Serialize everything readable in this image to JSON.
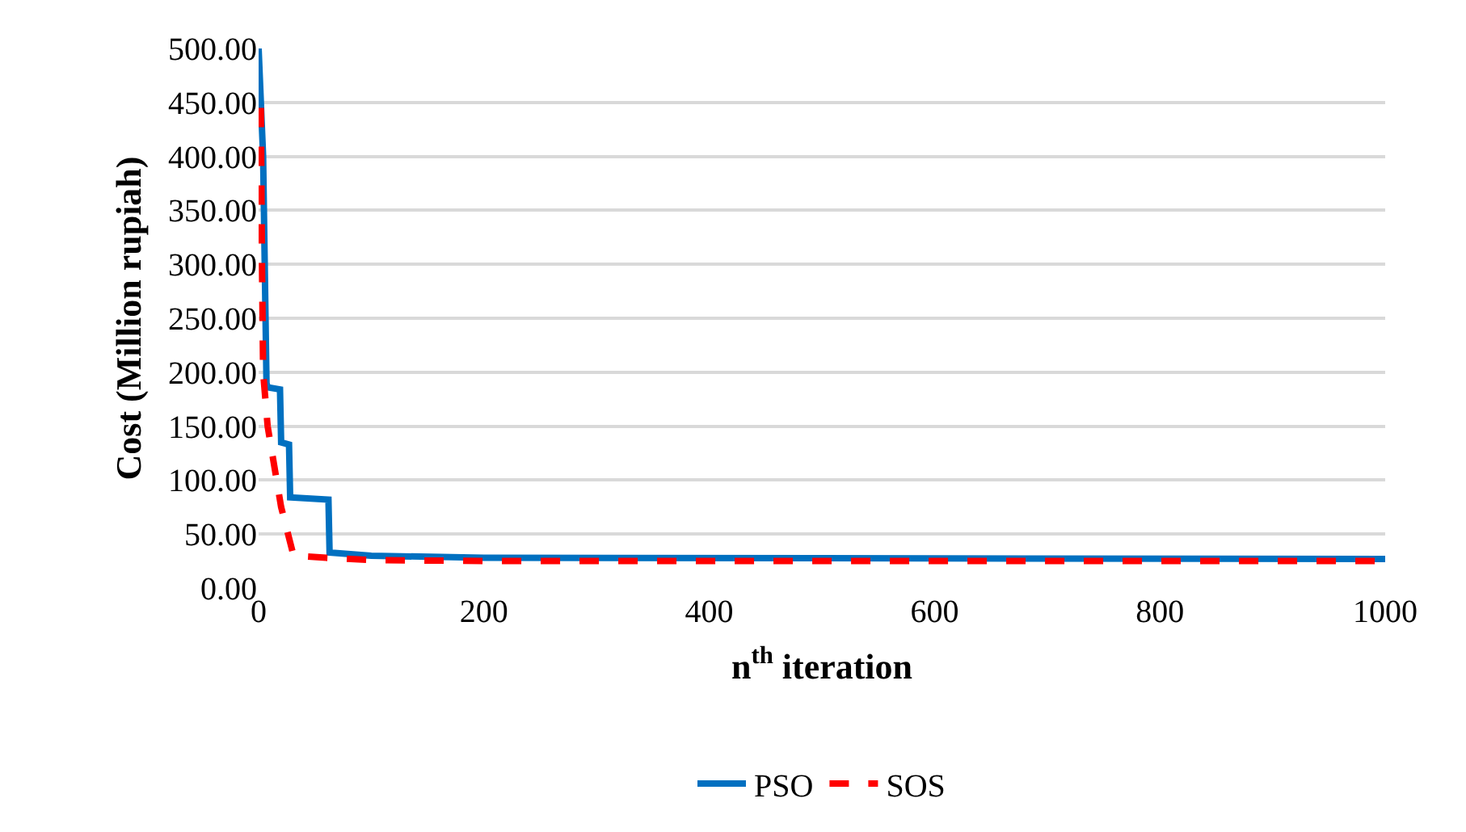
{
  "chart_data": {
    "type": "line",
    "xlabel": "n$^{th}$ iteration",
    "ylabel": "Cost (Million rupiah)",
    "xlim": [
      0,
      1000
    ],
    "xticks": [
      0,
      200,
      400,
      600,
      800,
      1000
    ],
    "ylim": [
      0,
      500
    ],
    "yticks": [
      {
        "value": 0,
        "label": "0.00"
      },
      {
        "value": 50,
        "label": "50.00"
      },
      {
        "value": 100,
        "label": "100.00"
      },
      {
        "value": 150,
        "label": "150.00"
      },
      {
        "value": 200,
        "label": "200.00"
      },
      {
        "value": 250,
        "label": "250.00"
      },
      {
        "value": 300,
        "label": "300.00"
      },
      {
        "value": 350,
        "label": "350.00"
      },
      {
        "value": 400,
        "label": "400.00"
      },
      {
        "value": 450,
        "label": "450.00"
      },
      {
        "value": 500,
        "label": "500.00"
      }
    ],
    "grid": "y",
    "legend": "bottom",
    "marker": "none",
    "series": [
      {
        "name": "PSO",
        "color": "#0070c0",
        "line_style": "solid",
        "x": [
          0,
          4,
          7,
          8,
          19,
          20,
          27,
          28,
          62,
          63,
          100,
          200,
          1000
        ],
        "values": [
          500,
          400,
          190,
          186,
          184,
          135,
          133,
          84,
          82,
          33,
          30,
          28,
          27
        ]
      },
      {
        "name": "SOS",
        "color": "#ff0000",
        "line_style": "dashed",
        "x": [
          2,
          3,
          4,
          8,
          20,
          31,
          60,
          100,
          200,
          1000
        ],
        "values": [
          445,
          300,
          200,
          150,
          75,
          30,
          28,
          26,
          25,
          25
        ]
      }
    ]
  }
}
